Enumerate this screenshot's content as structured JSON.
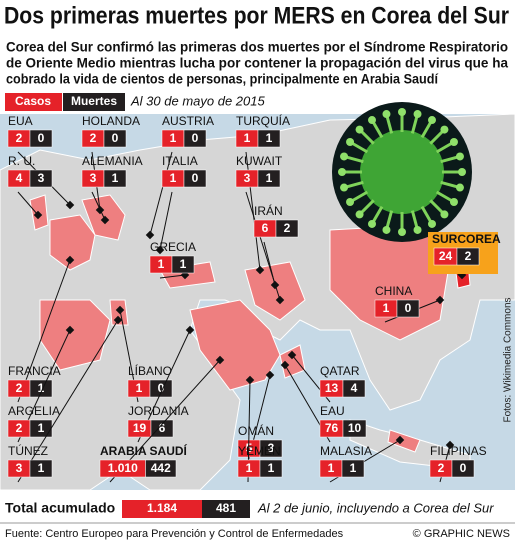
{
  "header": {
    "title": "Dos primeras muertes por MERS en Corea del Sur",
    "subtitle": [
      "Corea del Sur confirmó las primeras dos muertes por el Síndrome Respiratorio",
      "de Oriente Medio mientras lucha por contener la propagación del virus que ha",
      "cobrado la vida de cientos de personas, principalmente en Arabia Saudí"
    ]
  },
  "legend": {
    "cases": "Casos",
    "deaths": "Muertes",
    "date": "Al 30 de mayo de 2015"
  },
  "countries": [
    {
      "name": "EUA",
      "cases": "2",
      "deaths": "0"
    },
    {
      "name": "HOLANDA",
      "cases": "2",
      "deaths": "0"
    },
    {
      "name": "AUSTRIA",
      "cases": "1",
      "deaths": "0"
    },
    {
      "name": "TURQUÍA",
      "cases": "1",
      "deaths": "1"
    },
    {
      "name": "R. U.",
      "cases": "4",
      "deaths": "3"
    },
    {
      "name": "ALEMANIA",
      "cases": "3",
      "deaths": "1"
    },
    {
      "name": "ITALIA",
      "cases": "1",
      "deaths": "0"
    },
    {
      "name": "KUWAIT",
      "cases": "3",
      "deaths": "1"
    },
    {
      "name": "IRÁN",
      "cases": "6",
      "deaths": "2"
    },
    {
      "name": "GRECIA",
      "cases": "1",
      "deaths": "1"
    },
    {
      "name": "SURCOREA",
      "cases": "24",
      "deaths": "2"
    },
    {
      "name": "CHINA",
      "cases": "1",
      "deaths": "0"
    },
    {
      "name": "FRANCIA",
      "cases": "2",
      "deaths": "1"
    },
    {
      "name": "LÍBANO",
      "cases": "1",
      "deaths": "0"
    },
    {
      "name": "QATAR",
      "cases": "13",
      "deaths": "4"
    },
    {
      "name": "ARGELIA",
      "cases": "2",
      "deaths": "1"
    },
    {
      "name": "JORDANIA",
      "cases": "19",
      "deaths": "6"
    },
    {
      "name": "OMÁN",
      "cases": "5",
      "deaths": "3"
    },
    {
      "name": "EAU",
      "cases": "76",
      "deaths": "10"
    },
    {
      "name": "TÚNEZ",
      "cases": "3",
      "deaths": "1"
    },
    {
      "name": "ARABIA SAUDÍ",
      "cases": "1.010",
      "deaths": "442"
    },
    {
      "name": "YEMEN",
      "cases": "1",
      "deaths": "1"
    },
    {
      "name": "MALASIA",
      "cases": "1",
      "deaths": "1"
    },
    {
      "name": "FILIPINAS",
      "cases": "2",
      "deaths": "0"
    }
  ],
  "total": {
    "label": "Total acumulado",
    "cases": "1.184",
    "deaths": "481",
    "note": "Al 2 de junio, incluyendo a Corea del Sur"
  },
  "credit": "Fotos: Wikimedia Commons",
  "footer": {
    "source": "Fuente: Centro Europeo para Prevención y Control de Enfermedades",
    "copyright": "© GRAPHIC NEWS"
  }
}
